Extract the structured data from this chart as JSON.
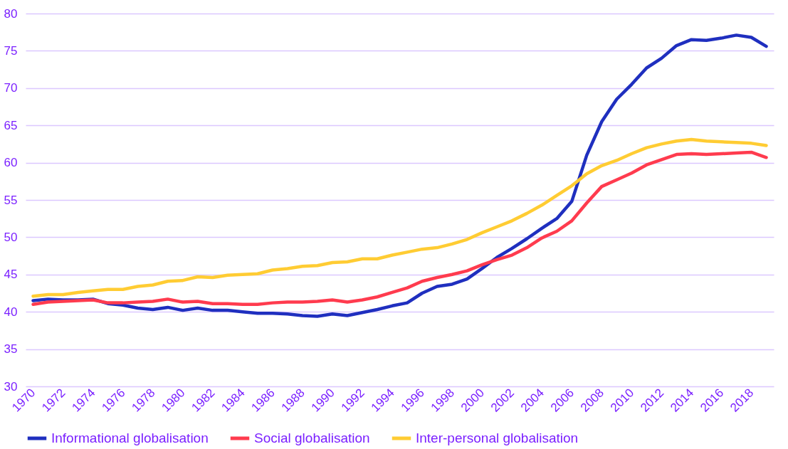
{
  "chart_data": {
    "type": "line",
    "categories": [
      "1970",
      null,
      "1972",
      null,
      "1974",
      null,
      "1976",
      null,
      "1978",
      null,
      "1980",
      null,
      "1982",
      null,
      "1984",
      null,
      "1986",
      null,
      "1988",
      null,
      "1990",
      null,
      "1992",
      null,
      "1994",
      null,
      "1996",
      null,
      "1998",
      null,
      "2000",
      null,
      "2002",
      null,
      "2004",
      null,
      "2006",
      null,
      "2008",
      null,
      "2010",
      null,
      "2012",
      null,
      "2014",
      null,
      "2016",
      null,
      "2018",
      null
    ],
    "series": [
      {
        "name": "Informational globalisation",
        "color": "#1f2fbf",
        "values": [
          41.5,
          41.7,
          41.6,
          41.6,
          41.7,
          41.1,
          40.9,
          40.5,
          40.3,
          40.6,
          40.2,
          40.5,
          40.2,
          40.2,
          40.0,
          39.8,
          39.8,
          39.7,
          39.5,
          39.4,
          39.7,
          39.5,
          39.9,
          40.3,
          40.8,
          41.2,
          42.5,
          43.4,
          43.7,
          44.4,
          45.8,
          47.3,
          48.5,
          49.8,
          51.2,
          52.5,
          54.8,
          61.0,
          65.5,
          68.5,
          70.5,
          72.7,
          74.0,
          75.7,
          76.5,
          76.4,
          76.7,
          77.1,
          76.8,
          75.6
        ]
      },
      {
        "name": "Social globalisation",
        "color": "#ff3b4e",
        "values": [
          41.0,
          41.3,
          41.4,
          41.5,
          41.6,
          41.2,
          41.2,
          41.3,
          41.4,
          41.7,
          41.3,
          41.4,
          41.1,
          41.1,
          41.0,
          41.0,
          41.2,
          41.3,
          41.3,
          41.4,
          41.6,
          41.3,
          41.6,
          42.0,
          42.6,
          43.2,
          44.1,
          44.6,
          45.0,
          45.5,
          46.3,
          47.0,
          47.6,
          48.6,
          49.9,
          50.8,
          52.2,
          54.6,
          56.8,
          57.7,
          58.6,
          59.7,
          60.4,
          61.1,
          61.2,
          61.1,
          61.2,
          61.3,
          61.4,
          60.7
        ]
      },
      {
        "name": "Inter-personal globalisation",
        "color": "#ffcc33",
        "values": [
          42.1,
          42.3,
          42.3,
          42.6,
          42.8,
          43.0,
          43.0,
          43.4,
          43.6,
          44.1,
          44.2,
          44.7,
          44.6,
          44.9,
          45.0,
          45.1,
          45.6,
          45.8,
          46.1,
          46.2,
          46.6,
          46.7,
          47.1,
          47.1,
          47.6,
          48.0,
          48.4,
          48.6,
          49.1,
          49.7,
          50.6,
          51.4,
          52.2,
          53.2,
          54.3,
          55.6,
          56.9,
          58.5,
          59.6,
          60.3,
          61.2,
          62.0,
          62.5,
          62.9,
          63.1,
          62.9,
          62.8,
          62.7,
          62.6,
          62.3
        ]
      }
    ],
    "ylim": [
      30,
      80
    ],
    "yticks": [
      30,
      35,
      40,
      45,
      50,
      55,
      60,
      65,
      70,
      75,
      80
    ],
    "grid": "y",
    "legend": "bottom",
    "line_style": "solid"
  }
}
